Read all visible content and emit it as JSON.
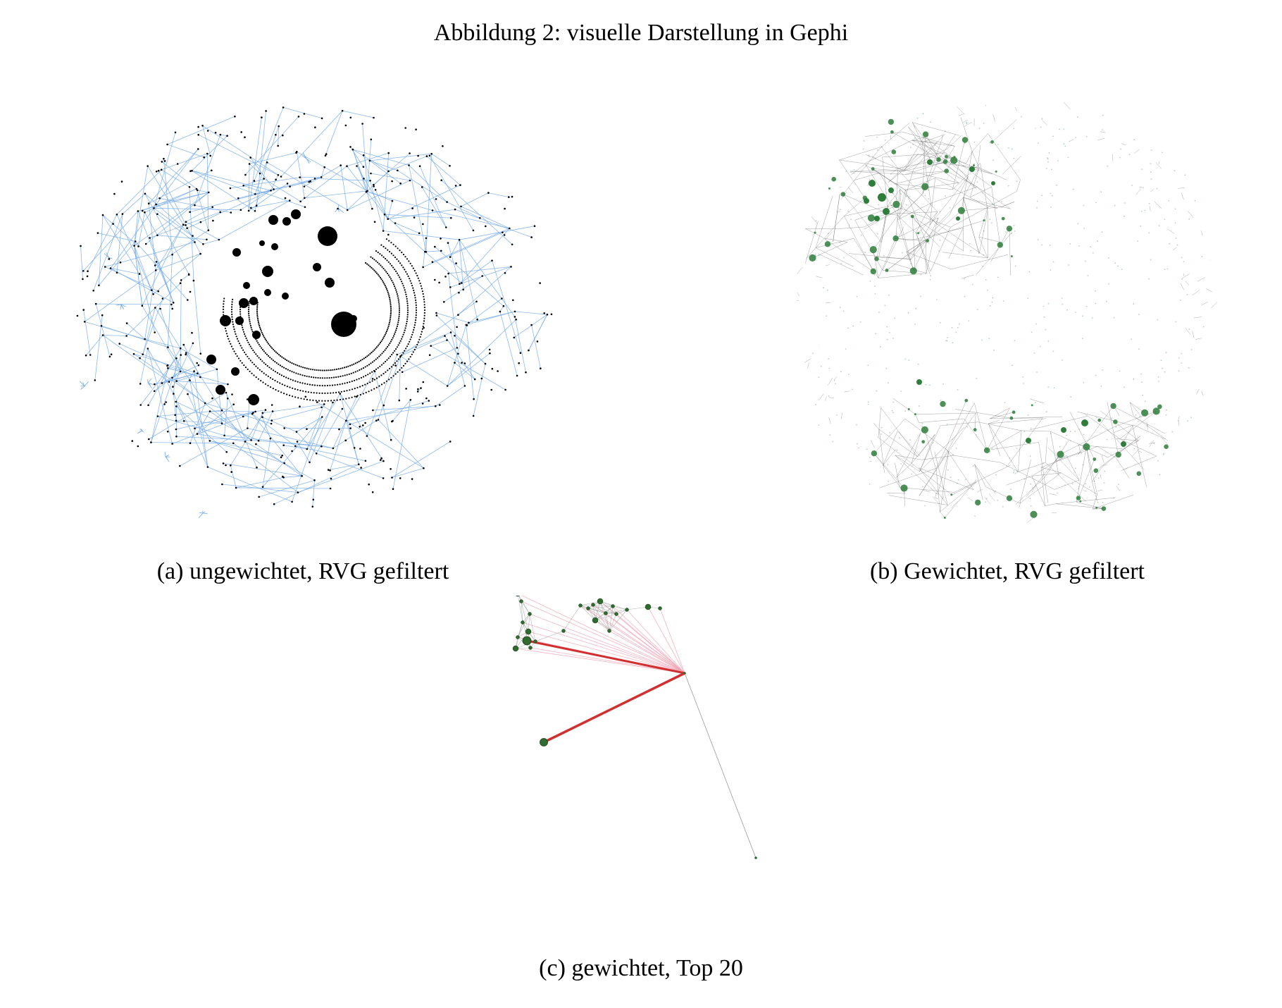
{
  "figure": {
    "title": "Abbildung 2: visuelle Darstellung in Gephi"
  },
  "panels": [
    {
      "id": "a",
      "caption": "(a) ungewichtet, RVG gefiltert",
      "edge_color": "#6fa8e8",
      "node_color": "#000000"
    },
    {
      "id": "b",
      "caption": "(b) Gewichtet, RVG gefiltert",
      "edge_color": "#555555",
      "node_color": "#2e7d3a"
    },
    {
      "id": "c",
      "caption": "(c) gewichtet, Top 20",
      "edge_color": "#9a9a9a",
      "strong_edge_color": "#d03030",
      "light_edge_color": "#f0a0b0",
      "node_color": "#2e6b2e"
    }
  ]
}
